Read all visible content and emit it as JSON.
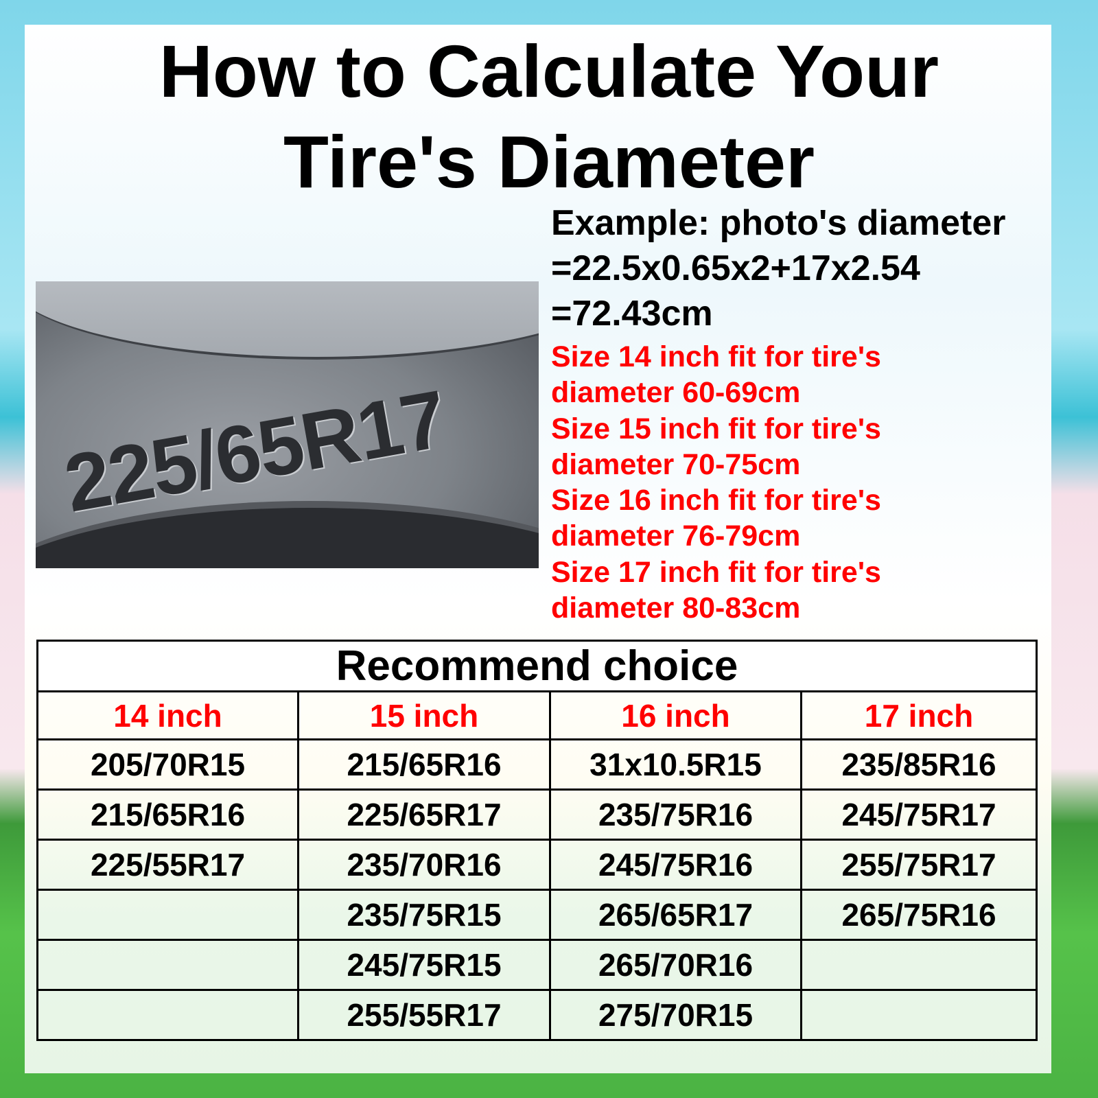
{
  "title": {
    "line1": "How to Calculate Your",
    "line2": "Tire's Diameter"
  },
  "photo": {
    "sidewall_marking": "225/65R17"
  },
  "example": {
    "line1": "Example: photo's diameter",
    "line2": "=22.5x0.65x2+17x2.54",
    "line3": "=72.43cm"
  },
  "sizes": [
    {
      "line1": "Size 14 inch fit for tire's",
      "line2": "diameter 60-69cm"
    },
    {
      "line1": "Size 15 inch fit for tire's",
      "line2": "diameter 70-75cm"
    },
    {
      "line1": "Size 16 inch fit for tire's",
      "line2": "diameter 76-79cm"
    },
    {
      "line1": "Size 17 inch fit for tire's",
      "line2": "diameter 80-83cm"
    }
  ],
  "colors": {
    "highlight": "#ff0000",
    "text": "#000000"
  },
  "table": {
    "caption": "Recommend choice",
    "columns": [
      "14 inch",
      "15 inch",
      "16 inch",
      "17 inch"
    ],
    "rows": [
      [
        "205/70R15",
        "215/65R16",
        "31x10.5R15",
        "235/85R16"
      ],
      [
        "215/65R16",
        "225/65R17",
        "235/75R16",
        "245/75R17"
      ],
      [
        "225/55R17",
        "235/70R16",
        "245/75R16",
        "255/75R17"
      ],
      [
        "",
        "235/75R15",
        "265/65R17",
        "265/75R16"
      ],
      [
        "",
        "245/75R15",
        "265/70R16",
        ""
      ],
      [
        "",
        "255/55R17",
        "275/70R15",
        ""
      ]
    ]
  }
}
